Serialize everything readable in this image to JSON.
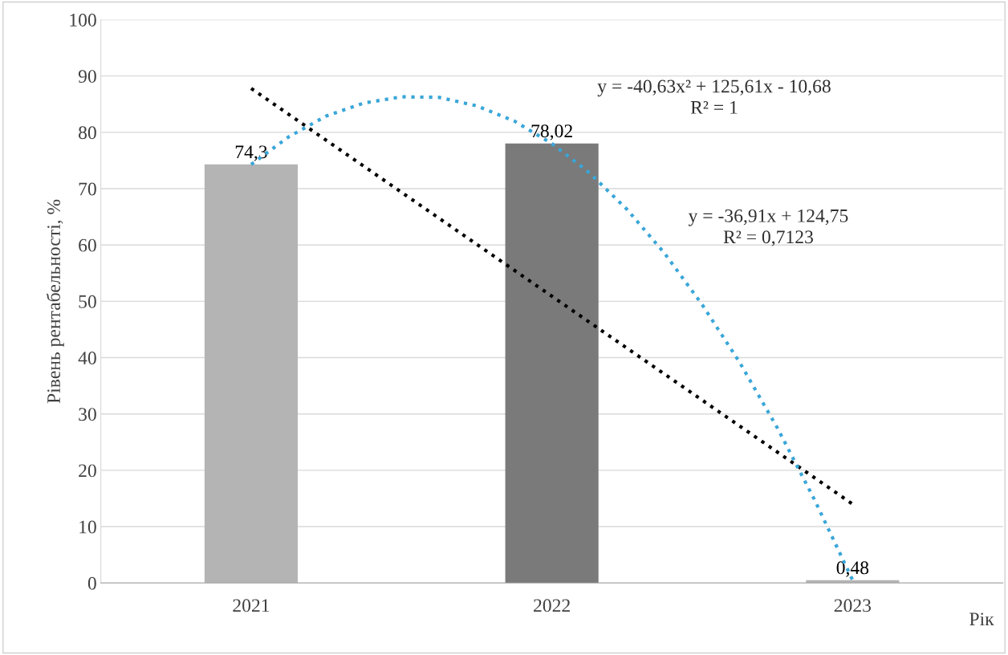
{
  "chart_data": {
    "type": "bar",
    "ylabel": "Рівень рентабельності, %",
    "xlabel": "Рік",
    "x": [
      2021,
      2022,
      2023
    ],
    "xlim": [
      2020.5,
      2023.5
    ],
    "xticks": [
      2021,
      2022,
      2023
    ],
    "ylim": [
      0,
      100
    ],
    "yticks": [
      0,
      10,
      20,
      30,
      40,
      50,
      60,
      70,
      80,
      90,
      100
    ],
    "grid": "y",
    "legend": false,
    "series": [
      {
        "colors": [
          "#b4b4b4",
          "#7a7a7a",
          "#b4b4b4"
        ],
        "values": [
          74.3,
          78.02,
          0.48
        ],
        "value_labels": [
          "74,3",
          "78,02",
          "0,48"
        ]
      },
      {
        "type": "line",
        "color": "#000000",
        "line_style": "dotted",
        "x": [
          2021,
          2023
        ],
        "values": [
          87.8,
          14.0
        ]
      },
      {
        "type": "line",
        "color": "#3aa6d8",
        "line_style": "dotted",
        "x": [
          2021,
          2021.125,
          2021.25,
          2021.375,
          2021.5,
          2021.625,
          2021.75,
          2021.875,
          2022,
          2022.125,
          2022.25,
          2022.375,
          2022.5,
          2022.625,
          2022.75,
          2022.875,
          2023
        ],
        "values": [
          74.3,
          79.2,
          82.9,
          85.2,
          86.3,
          86.2,
          84.7,
          82.0,
          78.0,
          72.8,
          66.3,
          58.5,
          49.4,
          39.1,
          27.5,
          14.6,
          0.5
        ]
      }
    ],
    "annotations": [
      "y = -40,63x² + 125,61x - 10,68\nR² = 1",
      "y = -36,91x + 124,75\nR² = 0,7123"
    ]
  }
}
